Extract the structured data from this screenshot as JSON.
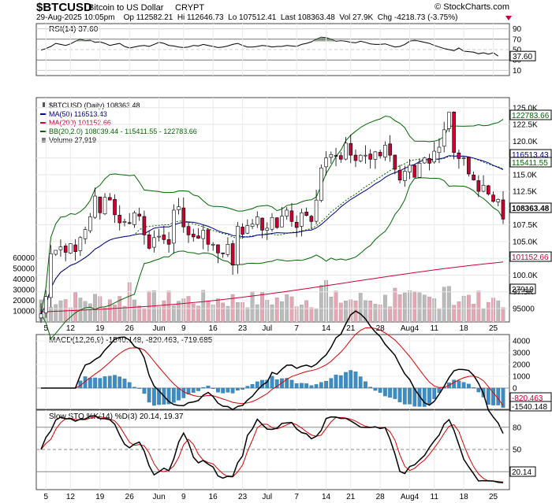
{
  "header": {
    "symbol": "$BTCUSD",
    "name": "Bitcoin to US Dollar",
    "exchange": "CRYPT",
    "copyright": "© StockCharts.com",
    "quote_line": "29-Aug-2025 10:05pm    Op 112582.21  Hi 112646.73  Lo 107512.41  Last 108363.48  Vol 27.9K  Chg -4218.73 (-3.75%)"
  },
  "colors": {
    "up": "#ffffff",
    "down": "#cc0033",
    "ma50": "#000080",
    "ma200": "#cc0033",
    "bb": "#006600",
    "volume_up": "#bbbbbb",
    "volume_down": "#e8a6b4",
    "macd_line": "#000000",
    "signal_line": "#dd0000",
    "histogram": "#3b8dc4",
    "rsi_fill": "#6e7f6e"
  },
  "rsi": {
    "label": "RSI(14) 37.60",
    "ticks": [
      "90",
      "70",
      "50",
      "30",
      "10"
    ],
    "last_tag": "37.60",
    "values": [
      49,
      52,
      56,
      62,
      60,
      58,
      61,
      66,
      70,
      67,
      68,
      64,
      65,
      62,
      58,
      60,
      62,
      56,
      53,
      55,
      57,
      58,
      56,
      60,
      64,
      62,
      58,
      57,
      55,
      54,
      55,
      58,
      57,
      60,
      58,
      56,
      54,
      55,
      57,
      60,
      62,
      58,
      55,
      55,
      56,
      58,
      57,
      55,
      56,
      56,
      58,
      57,
      56,
      60,
      62,
      65,
      70,
      74,
      73,
      70,
      66,
      67,
      66,
      64,
      63,
      66,
      64,
      61,
      60,
      60,
      61,
      58,
      55,
      56,
      60,
      66,
      68,
      66,
      64,
      62,
      58,
      55,
      52,
      50,
      48,
      53,
      47,
      46,
      45,
      42,
      44,
      41,
      44,
      37.6
    ]
  },
  "price": {
    "legend": {
      "title": "$BTCUSD (Daily) 108363.48",
      "ma50": "MA(50) 116513.43",
      "ma200": "MA(200) 101152.66",
      "bb": "BB(20,2.0) 108039.44 - 115411.55 - 122783.66",
      "volume": "Volume 27,919"
    },
    "ticks": [
      "125.0K",
      "122.5K",
      "120.0K",
      "117.5K",
      "115.0K",
      "112.5K",
      "110.0K",
      "107.5K",
      "105.0K",
      "102.5K",
      "100.0K",
      "97.5K",
      "95000"
    ],
    "tags": [
      "122783.66",
      "116513.43",
      "115411.55",
      "108363.48",
      "101152.66"
    ],
    "volume_tag": "27919",
    "volume_ticks": [
      "60000",
      "50000",
      "40000",
      "30000",
      "20000",
      "10000"
    ],
    "x_labels": [
      "5",
      "12",
      "19",
      "26",
      "Jun",
      "9",
      "16",
      "23",
      "Jul",
      "7",
      "14",
      "21",
      "28",
      "Aug4",
      "11",
      "18",
      "25"
    ],
    "closes": [
      94200,
      96800,
      103200,
      103700,
      104200,
      103400,
      104700,
      103500,
      105600,
      106800,
      108700,
      111800,
      109300,
      111600,
      111200,
      109000,
      107800,
      108000,
      107700,
      109300,
      108800,
      106000,
      104000,
      105600,
      105800,
      105300,
      104600,
      109700,
      110200,
      107200,
      106000,
      105700,
      105500,
      106700,
      104600,
      104600,
      103300,
      103200,
      104600,
      101500,
      107300,
      106100,
      107400,
      107600,
      108700,
      106700,
      107000,
      108600,
      107100,
      108800,
      109700,
      108000,
      107100,
      109300,
      108900,
      108000,
      111200,
      116000,
      117500,
      118000,
      117800,
      117300,
      119700,
      117900,
      117100,
      117900,
      117900,
      117300,
      118400,
      117800,
      119400,
      117900,
      115800,
      114200,
      115500,
      116400,
      114600,
      116700,
      117500,
      116700,
      118500,
      119100,
      121700,
      124300,
      118300,
      117400,
      117500,
      115100,
      114200,
      112500,
      113400,
      112100,
      111000,
      111300,
      108363
    ],
    "chart_info": "x: trading days 2025-05-03..2025-08-29; ma50/ma200/bb drawn as smoothed overlays"
  },
  "macd": {
    "label": "MACD(12,26,9) -1540.148, -820.463, -719.685",
    "ticks": [
      "4000",
      "3000",
      "2000",
      "1000",
      "0"
    ],
    "tags": [
      "-820.463",
      "-1540.148"
    ]
  },
  "sto": {
    "label": "Slow STO %K(14) %D(3) 20.14, 19.37",
    "ticks": [
      "80",
      "50",
      "20"
    ],
    "last_tag": "20.14"
  },
  "chart_data": [
    {
      "type": "line",
      "title": "RSI(14) 37.60",
      "ylim": [
        0,
        100
      ],
      "series": [
        {
          "name": "RSI(14)",
          "values": [
            49,
            52,
            56,
            62,
            60,
            58,
            61,
            66,
            70,
            67,
            68,
            64,
            65,
            62,
            58,
            60,
            62,
            56,
            53,
            55,
            57,
            58,
            56,
            60,
            64,
            62,
            58,
            57,
            55,
            54,
            55,
            58,
            57,
            60,
            58,
            56,
            54,
            55,
            57,
            60,
            62,
            58,
            55,
            55,
            56,
            58,
            57,
            55,
            56,
            56,
            58,
            57,
            56,
            60,
            62,
            65,
            70,
            74,
            73,
            70,
            66,
            67,
            66,
            64,
            63,
            66,
            64,
            61,
            60,
            60,
            61,
            58,
            55,
            56,
            60,
            66,
            68,
            66,
            64,
            62,
            58,
            55,
            52,
            50,
            48,
            53,
            47,
            46,
            45,
            42,
            44,
            41,
            44,
            37.6
          ]
        }
      ]
    },
    {
      "type": "line",
      "title": "$BTCUSD (Daily) 108363.48",
      "x": "2025-05-03 .. 2025-08-29 (daily)",
      "ylim": [
        93000,
        126500
      ],
      "series": [
        {
          "name": "$BTCUSD",
          "values": [
            94200,
            96800,
            103200,
            103700,
            104200,
            103400,
            104700,
            103500,
            105600,
            106800,
            108700,
            111800,
            109300,
            111600,
            111200,
            109000,
            107800,
            108000,
            107700,
            109300,
            108800,
            106000,
            104000,
            105600,
            105800,
            105300,
            104600,
            109700,
            110200,
            107200,
            106000,
            105700,
            105500,
            106700,
            104600,
            104600,
            103300,
            103200,
            104600,
            101500,
            107300,
            106100,
            107400,
            107600,
            108700,
            106700,
            107000,
            108600,
            107100,
            108800,
            109700,
            108000,
            107100,
            109300,
            108900,
            108000,
            111200,
            116000,
            117500,
            118000,
            117800,
            117300,
            119700,
            117900,
            117100,
            117900,
            117900,
            117300,
            118400,
            117800,
            119400,
            117900,
            115800,
            114200,
            115500,
            116400,
            114600,
            116700,
            117500,
            116700,
            118500,
            119100,
            121700,
            124300,
            118300,
            117400,
            117500,
            115100,
            114200,
            112500,
            113400,
            112100,
            111000,
            111300,
            108363
          ]
        },
        {
          "name": "MA(50)",
          "last": 116513.43
        },
        {
          "name": "MA(200)",
          "last": 101152.66
        }
      ]
    }
  ]
}
